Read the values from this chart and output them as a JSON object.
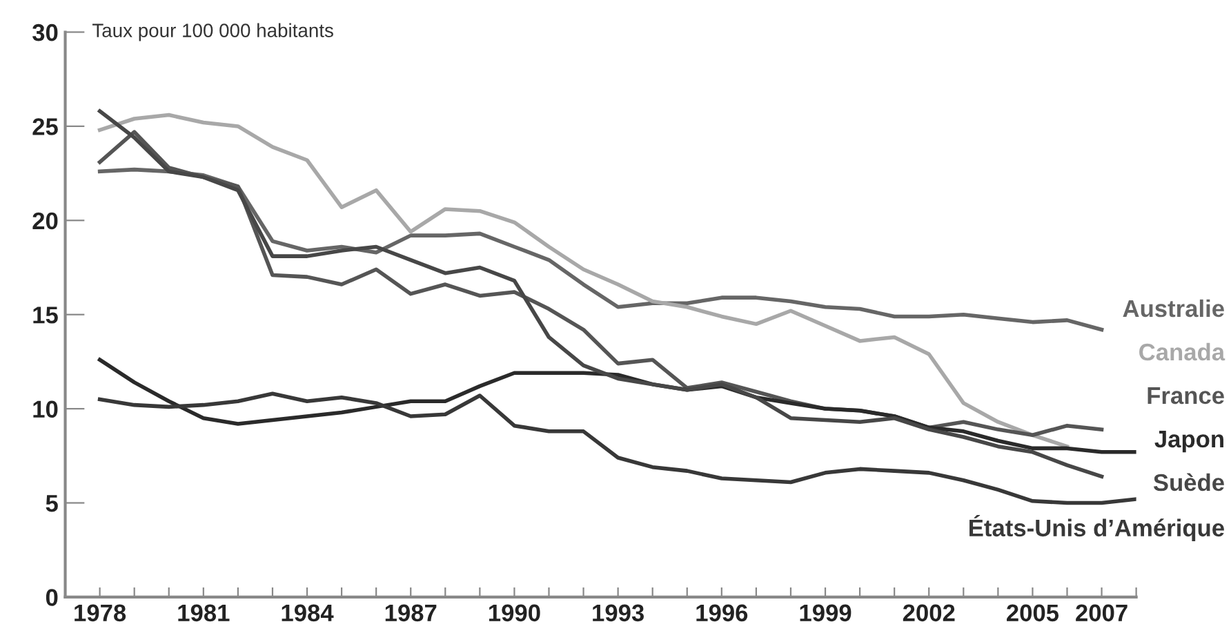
{
  "chart_data": {
    "type": "line",
    "ylabel": "Taux pour 100 000 habitants",
    "xlim": [
      1977,
      2008
    ],
    "ylim": [
      0,
      30
    ],
    "yticks": [
      0,
      5,
      10,
      15,
      20,
      25,
      30
    ],
    "xticks": [
      {
        "value": 1977,
        "label": null
      },
      1978,
      {
        "value": 1979,
        "label": null
      },
      {
        "value": 1980,
        "label": null
      },
      1981,
      {
        "value": 1982,
        "label": null
      },
      {
        "value": 1983,
        "label": null
      },
      1984,
      {
        "value": 1985,
        "label": null
      },
      {
        "value": 1986,
        "label": null
      },
      1987,
      {
        "value": 1988,
        "label": null
      },
      {
        "value": 1989,
        "label": null
      },
      1990,
      {
        "value": 1991,
        "label": null
      },
      {
        "value": 1992,
        "label": null
      },
      1993,
      {
        "value": 1994,
        "label": null
      },
      {
        "value": 1995,
        "label": null
      },
      1996,
      {
        "value": 1997,
        "label": null
      },
      {
        "value": 1998,
        "label": null
      },
      1999,
      {
        "value": 2000,
        "label": null
      },
      {
        "value": 2001,
        "label": null
      },
      2002,
      {
        "value": 2003,
        "label": null
      },
      {
        "value": 2004,
        "label": null
      },
      2005,
      {
        "value": 2006,
        "label": null
      },
      2007,
      {
        "value": 2008,
        "label": null
      }
    ],
    "grid": false,
    "legend": false,
    "marker": "none",
    "line_style": "solid",
    "series": [
      {
        "name": "Australie",
        "color": "#666666",
        "x": [
          1978,
          1979,
          1980,
          1981,
          1982,
          1983,
          1984,
          1985,
          1986,
          1987,
          1988,
          1989,
          1990,
          1991,
          1992,
          1993,
          1994,
          1995,
          1996,
          1997,
          1998,
          1999,
          2000,
          2001,
          2002,
          2003,
          2004,
          2005,
          2006,
          2007
        ],
        "values": [
          22.6,
          22.7,
          22.6,
          22.4,
          21.8,
          18.9,
          18.4,
          18.6,
          18.3,
          19.2,
          19.2,
          19.3,
          18.6,
          17.9,
          16.6,
          15.4,
          15.6,
          15.6,
          15.9,
          15.9,
          15.7,
          15.4,
          15.3,
          14.9,
          14.9,
          15.0,
          14.8,
          14.6,
          14.7,
          14.2
        ]
      },
      {
        "name": "Canada",
        "color": "#a8a8a8",
        "x": [
          1978,
          1979,
          1980,
          1981,
          1982,
          1983,
          1984,
          1985,
          1986,
          1987,
          1988,
          1989,
          1990,
          1991,
          1992,
          1993,
          1994,
          1995,
          1996,
          1997,
          1998,
          1999,
          2000,
          2001,
          2002,
          2003,
          2004,
          2005,
          2006
        ],
        "values": [
          24.8,
          25.4,
          25.6,
          25.2,
          25.0,
          23.9,
          23.2,
          20.7,
          21.6,
          19.4,
          20.6,
          20.5,
          19.9,
          18.6,
          17.4,
          16.6,
          15.7,
          15.4,
          14.9,
          14.5,
          15.2,
          14.4,
          13.6,
          13.8,
          12.9,
          10.3,
          9.3,
          8.6,
          8.0
        ]
      },
      {
        "name": "France",
        "color": "#555555",
        "x": [
          1978,
          1979,
          1980,
          1981,
          1982,
          1983,
          1984,
          1985,
          1986,
          1987,
          1988,
          1989,
          1990,
          1991,
          1992,
          1993,
          1994,
          1995,
          1996,
          1997,
          1998,
          1999,
          2000,
          2001,
          2002,
          2003,
          2004,
          2005,
          2006,
          2007
        ],
        "values": [
          23.1,
          24.7,
          22.8,
          22.3,
          21.8,
          17.1,
          17.0,
          16.6,
          17.4,
          16.1,
          16.6,
          16.0,
          16.2,
          15.3,
          14.2,
          12.4,
          12.6,
          11.1,
          11.4,
          10.9,
          10.4,
          10.0,
          9.9,
          9.6,
          9.0,
          9.3,
          8.9,
          8.6,
          9.1,
          8.9
        ]
      },
      {
        "name": "Japon",
        "color": "#2a2a2a",
        "x": [
          1978,
          1979,
          1980,
          1981,
          1982,
          1983,
          1984,
          1985,
          1986,
          1987,
          1988,
          1989,
          1990,
          1991,
          1992,
          1993,
          1994,
          1995,
          1996,
          1997,
          1998,
          1999,
          2000,
          2001,
          2002,
          2003,
          2004,
          2005,
          2006,
          2007,
          2008
        ],
        "values": [
          12.6,
          11.4,
          10.4,
          9.5,
          9.2,
          9.4,
          9.6,
          9.8,
          10.1,
          10.4,
          10.4,
          11.2,
          11.9,
          11.9,
          11.9,
          11.8,
          11.3,
          11.0,
          11.2,
          10.6,
          10.3,
          10.0,
          9.9,
          9.6,
          9.0,
          8.8,
          8.3,
          7.9,
          7.9,
          7.7,
          7.7
        ]
      },
      {
        "name": "Suède",
        "color": "#474747",
        "x": [
          1978,
          1979,
          1980,
          1981,
          1982,
          1983,
          1984,
          1985,
          1986,
          1987,
          1988,
          1989,
          1990,
          1991,
          1992,
          1993,
          1994,
          1995,
          1996,
          1997,
          1998,
          1999,
          2000,
          2001,
          2002,
          2003,
          2004,
          2005,
          2006,
          2007
        ],
        "values": [
          25.8,
          24.4,
          22.6,
          22.3,
          21.6,
          18.1,
          18.1,
          18.4,
          18.6,
          17.9,
          17.2,
          17.5,
          16.8,
          13.8,
          12.3,
          11.6,
          11.3,
          11.0,
          11.3,
          10.6,
          9.5,
          9.4,
          9.3,
          9.5,
          8.9,
          8.5,
          8.0,
          7.7,
          7.0,
          6.4
        ]
      },
      {
        "name": "États-Unis d’Amérique",
        "color": "#383838",
        "x": [
          1978,
          1979,
          1980,
          1981,
          1982,
          1983,
          1984,
          1985,
          1986,
          1987,
          1988,
          1989,
          1990,
          1991,
          1992,
          1993,
          1994,
          1995,
          1996,
          1997,
          1998,
          1999,
          2000,
          2001,
          2002,
          2003,
          2004,
          2005,
          2006,
          2007,
          2008
        ],
        "values": [
          10.5,
          10.2,
          10.1,
          10.2,
          10.4,
          10.8,
          10.4,
          10.6,
          10.3,
          9.6,
          9.7,
          10.7,
          9.1,
          8.8,
          8.8,
          7.4,
          6.9,
          6.7,
          6.3,
          6.2,
          6.1,
          6.6,
          6.8,
          6.7,
          6.6,
          6.2,
          5.7,
          5.1,
          5.0,
          5.0,
          5.2
        ]
      }
    ]
  }
}
